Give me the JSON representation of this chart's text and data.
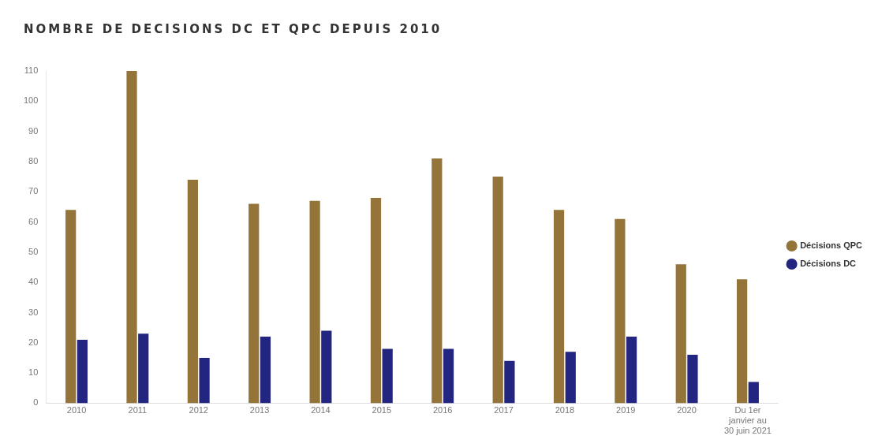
{
  "chart_data": {
    "type": "bar",
    "title": "NOMBRE DE DECISIONS DC ET QPC DEPUIS 2010",
    "categories": [
      "2010",
      "2011",
      "2012",
      "2013",
      "2014",
      "2015",
      "2016",
      "2017",
      "2018",
      "2019",
      "2020",
      "Du 1er janvier au 30 juin 2021"
    ],
    "series": [
      {
        "name": "Décisions QPC",
        "color": "#957439",
        "values": [
          64,
          110,
          74,
          66,
          67,
          68,
          81,
          75,
          64,
          61,
          46,
          41
        ]
      },
      {
        "name": "Décisions DC",
        "color": "#232680",
        "values": [
          21,
          23,
          15,
          22,
          24,
          18,
          18,
          14,
          17,
          22,
          16,
          7
        ]
      }
    ],
    "ylim": [
      0,
      110
    ],
    "yticks": [
      0,
      10,
      20,
      30,
      40,
      50,
      60,
      70,
      80,
      90,
      100,
      110
    ],
    "grid": false,
    "legend": "right"
  }
}
